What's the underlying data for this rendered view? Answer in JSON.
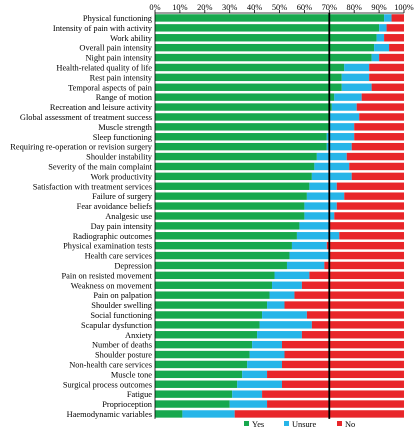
{
  "chart_data": {
    "type": "bar",
    "orientation": "horizontal",
    "stacked": true,
    "title": "",
    "xlabel": "",
    "ylabel": "",
    "xlim": [
      0,
      100
    ],
    "x_ticks": [
      "0%",
      "10%",
      "20%",
      "30%",
      "40%",
      "50%",
      "60%",
      "70%",
      "80%",
      "90%",
      "100%"
    ],
    "reference_line": 70,
    "grid": false,
    "legend_position": "bottom",
    "categories": [
      "Physical functioning",
      "Intensity of pain with activity",
      "Work ability",
      "Overall pain intensity",
      "Night pain intensity",
      "Health-related quality of life",
      "Rest pain intensity",
      "Temporal aspects of pain",
      "Range of motion",
      "Recreation and leisure activity",
      "Global assessment of treatment success",
      "Muscle strength",
      "Sleep functioning",
      "Requiring re-operation or revision surgery",
      "Shoulder instability",
      "Severity of the main complaint",
      "Work productivity",
      "Satisfaction with treatment services",
      "Failure of surgery",
      "Fear avoidance beliefs",
      "Analgesic use",
      "Day pain intensity",
      "Radiographic outcomes",
      "Physical examination tests",
      "Health care services",
      "Depression",
      "Pain on resisted movement",
      "Weakness on movement",
      "Pain on palpation",
      "Shoulder swelling",
      "Social functioning",
      "Scapular dysfunction",
      "Anxiety",
      "Number of deaths",
      "Shoulder posture",
      "Non-health care services",
      "Muscle tone",
      "Surgical process outcomes",
      "Fatigue",
      "Proprioception",
      "Haemodynamic variables"
    ],
    "series": [
      {
        "name": "Yes",
        "color": "#17a84e",
        "values": [
          92,
          90,
          89,
          88,
          87,
          76,
          75,
          75,
          72,
          71,
          70,
          70,
          69,
          69,
          65,
          64,
          63,
          62,
          61,
          60,
          60,
          58,
          57,
          55,
          54,
          53,
          48,
          47,
          46,
          45,
          43,
          42,
          41,
          39,
          38,
          37,
          35,
          33,
          31,
          30,
          11
        ]
      },
      {
        "name": "Unsure",
        "color": "#26b5e8",
        "values": [
          3,
          3,
          3,
          6,
          3,
          10,
          11,
          12,
          11,
          10,
          12,
          10,
          11,
          10,
          12,
          14,
          16,
          11,
          15,
          13,
          12,
          12,
          17,
          14,
          16,
          15,
          14,
          12,
          10,
          7,
          18,
          21,
          18,
          12,
          14,
          14,
          10,
          18,
          12,
          15,
          21
        ]
      },
      {
        "name": "No",
        "color": "#e8262a",
        "values": [
          5,
          7,
          8,
          6,
          10,
          14,
          14,
          13,
          17,
          19,
          18,
          20,
          20,
          21,
          23,
          22,
          21,
          27,
          24,
          27,
          28,
          30,
          26,
          31,
          30,
          32,
          38,
          41,
          44,
          48,
          39,
          37,
          41,
          49,
          48,
          49,
          55,
          49,
          57,
          55,
          68
        ]
      }
    ]
  }
}
